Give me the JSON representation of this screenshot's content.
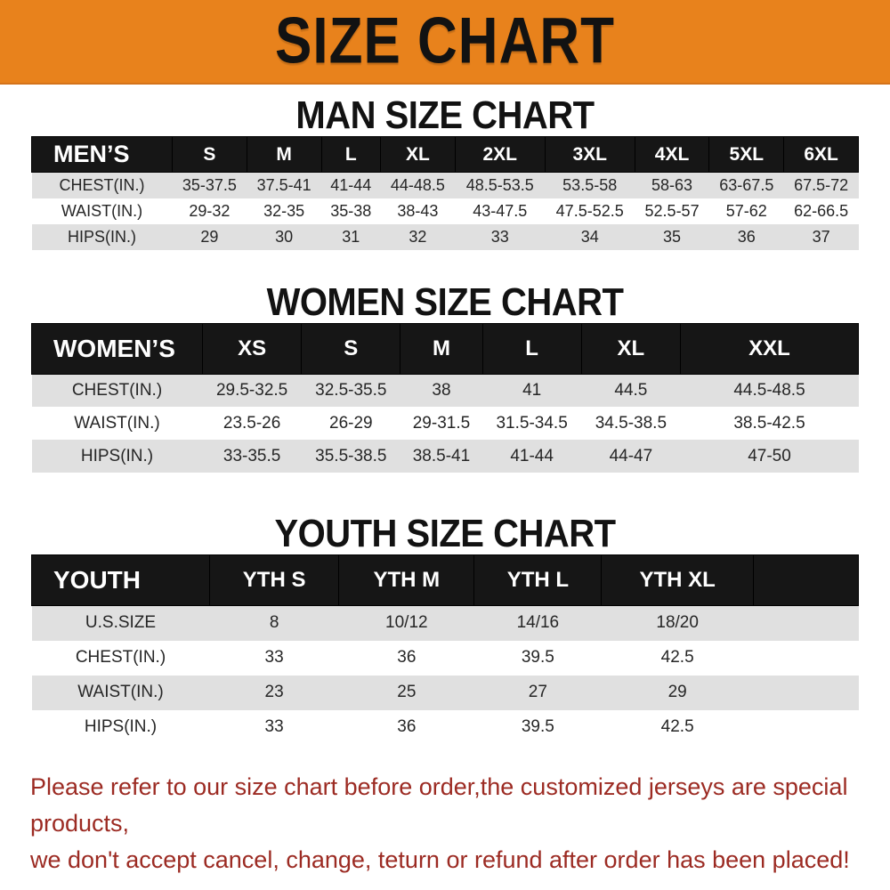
{
  "banner": {
    "title": "SIZE CHART"
  },
  "colors": {
    "banner_bg": "#e8821c",
    "table_header_bg": "#161616",
    "row_stripe": "#e0e0e0",
    "disclaimer_red": "#9c2b23"
  },
  "sections": [
    {
      "heading": "MAN SIZE CHART",
      "table": {
        "label": "MEN’S",
        "columns": [
          "S",
          "M",
          "L",
          "XL",
          "2XL",
          "3XL",
          "4XL",
          "5XL",
          "6XL"
        ],
        "rows": [
          {
            "label": "CHEST(IN.)",
            "values": [
              "35-37.5",
              "37.5-41",
              "41-44",
              "44-48.5",
              "48.5-53.5",
              "53.5-58",
              "58-63",
              "63-67.5",
              "67.5-72"
            ]
          },
          {
            "label": "WAIST(IN.)",
            "values": [
              "29-32",
              "32-35",
              "35-38",
              "38-43",
              "43-47.5",
              "47.5-52.5",
              "52.5-57",
              "57-62",
              "62-66.5"
            ]
          },
          {
            "label": "HIPS(IN.)",
            "values": [
              "29",
              "30",
              "31",
              "32",
              "33",
              "34",
              "35",
              "36",
              "37"
            ]
          }
        ]
      }
    },
    {
      "heading": "WOMEN SIZE CHART",
      "table": {
        "label": "WOMEN’S",
        "columns": [
          "XS",
          "S",
          "M",
          "L",
          "XL",
          "XXL"
        ],
        "rows": [
          {
            "label": "CHEST(IN.)",
            "values": [
              "29.5-32.5",
              "32.5-35.5",
              "38",
              "41",
              "44.5",
              "44.5-48.5"
            ]
          },
          {
            "label": "WAIST(IN.)",
            "values": [
              "23.5-26",
              "26-29",
              "29-31.5",
              "31.5-34.5",
              "34.5-38.5",
              "38.5-42.5"
            ]
          },
          {
            "label": "HIPS(IN.)",
            "values": [
              "33-35.5",
              "35.5-38.5",
              "38.5-41",
              "41-44",
              "44-47",
              "47-50"
            ]
          }
        ]
      }
    },
    {
      "heading": "YOUTH SIZE CHART",
      "table": {
        "label": "YOUTH",
        "columns": [
          "YTH S",
          "YTH M",
          "YTH L",
          "YTH XL"
        ],
        "rows": [
          {
            "label": "U.S.SIZE",
            "values": [
              "8",
              "10/12",
              "14/16",
              "18/20"
            ]
          },
          {
            "label": "CHEST(IN.)",
            "values": [
              "33",
              "36",
              "39.5",
              "42.5"
            ]
          },
          {
            "label": "WAIST(IN.)",
            "values": [
              "23",
              "25",
              "27",
              "29"
            ]
          },
          {
            "label": "HIPS(IN.)",
            "values": [
              "33",
              "36",
              "39.5",
              "42.5"
            ]
          }
        ]
      }
    }
  ],
  "disclaimer": {
    "line1": "Please refer to our size chart before order,the customized jerseys are special products,",
    "line2": "we don't accept cancel, change, teturn or refund after order has been placed!"
  }
}
